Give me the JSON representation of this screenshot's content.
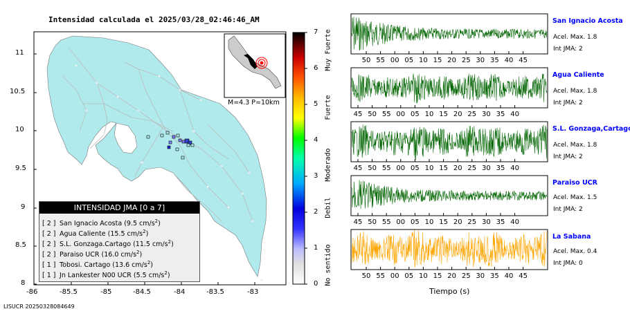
{
  "title": "Intensidad calculada el 2025/03/28_02:46:46_AM",
  "map": {
    "lat_ticks": [
      "11",
      "10.5",
      "10",
      "9.5",
      "9",
      "8.5",
      "8"
    ],
    "lon_ticks": [
      "-86",
      "-85.5",
      "-85",
      "-84.5",
      "-84",
      "-83.5",
      "-83"
    ],
    "inset_text": "M=4.3 P=10km",
    "colors": {
      "land": "#b0eaec",
      "sea": "#ffffff",
      "roads": "#bbbbbb"
    }
  },
  "colorbar": {
    "ticks": [
      "0",
      "1",
      "2",
      "3",
      "4",
      "5",
      "6",
      "7"
    ],
    "labels": [
      "No sentido",
      "Debil",
      "Moderado",
      "Fuerte",
      "Muy Fuerte"
    ],
    "colors": [
      "#ffffff",
      "#8080ff",
      "#0000ff",
      "#00ffff",
      "#00ff00",
      "#ffff00",
      "#ff8000",
      "#ff0000",
      "#000000"
    ]
  },
  "legend": {
    "header": "INTENSIDAD JMA [0 a 7]",
    "rows": [
      {
        "level": "[ 2 ]",
        "station": "San Ignacio Acosta",
        "accel": "(9.5 cm/s",
        "sup": "2",
        "close": ")"
      },
      {
        "level": "[ 2 ]",
        "station": "Agua Caliente",
        "accel": "(15.5 cm/s",
        "sup": "2",
        "close": ")"
      },
      {
        "level": "[ 2 ]",
        "station": "S.L. Gonzaga.Cartago",
        "accel": "(11.5 cm/s",
        "sup": "2",
        "close": ")"
      },
      {
        "level": "[ 2 ]",
        "station": "Paraiso UCR",
        "accel": "(16.0 cm/s",
        "sup": "2",
        "close": ")"
      },
      {
        "level": "[ 1 ]",
        "station": "Tobosi. Cartago",
        "accel": "(13.6 cm/s",
        "sup": "2",
        "close": ")"
      },
      {
        "level": "[ 1 ]",
        "station": "Jn Lankester N00 UCR",
        "accel": "(5.5 cm/s",
        "sup": "2",
        "close": ")"
      }
    ]
  },
  "stations": [
    {
      "name": "San Ignacio Acosta",
      "accel": "Acel. Max. 1.8",
      "jma": "Int JMA: 2",
      "color": "#006400",
      "ticks": [
        "50",
        "55",
        "00",
        "05",
        "10",
        "15",
        "20",
        "25",
        "30",
        "35",
        "40",
        "45"
      ]
    },
    {
      "name": "Agua Caliente",
      "accel": "Acel. Max. 1.8",
      "jma": "Int JMA: 2",
      "color": "#006400",
      "ticks": [
        "45",
        "50",
        "55",
        "00",
        "05",
        "10",
        "15",
        "20",
        "25",
        "30",
        "35",
        "40"
      ]
    },
    {
      "name": "S.L. Gonzaga,Cartago",
      "accel": "Acel. Max. 1.8",
      "jma": "Int JMA: 2",
      "color": "#006400",
      "ticks": [
        "45",
        "50",
        "55",
        "00",
        "05",
        "10",
        "15",
        "20",
        "25",
        "30",
        "35",
        "40"
      ]
    },
    {
      "name": "Paraiso UCR",
      "accel": "Acel. Max. 1.5",
      "jma": "Int JMA: 2",
      "color": "#006400",
      "ticks": [
        "45",
        "50",
        "55",
        "00",
        "05",
        "10",
        "15",
        "20",
        "25",
        "30",
        "35",
        "40"
      ]
    },
    {
      "name": "La Sabana",
      "accel": "Acel. Max. 0.4",
      "jma": "Int JMA: 0",
      "color": "#ffa500",
      "ticks": [
        "50",
        "55",
        "00",
        "05",
        "10",
        "15",
        "20",
        "25",
        "30",
        "35",
        "40",
        "45"
      ]
    }
  ],
  "xlabel": "Tiempo (s)",
  "footer": "LISUCR 20250328084649"
}
